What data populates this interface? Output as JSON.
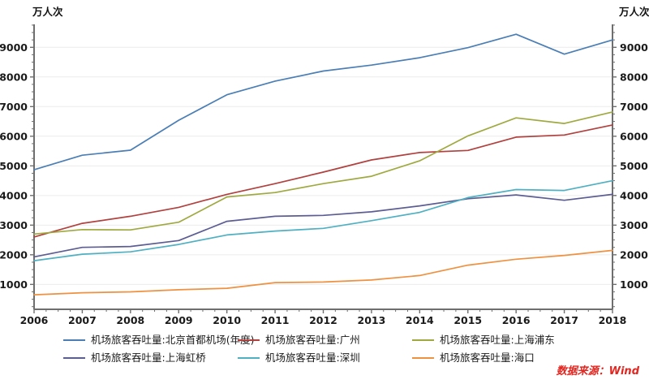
{
  "labels": {
    "unit_left": "万人次",
    "unit_right": "万人次",
    "source": "数据来源：Wind"
  },
  "chart_data": {
    "type": "line",
    "title": "",
    "xlabel": "",
    "ylabel": "万人次",
    "x": [
      "2006",
      "2007",
      "2008",
      "2009",
      "2010",
      "2011",
      "2012",
      "2013",
      "2014",
      "2015",
      "2016",
      "2017",
      "2018"
    ],
    "ylim": [
      160,
      9775
    ],
    "yticks": [
      1000,
      2000,
      3000,
      4000,
      5000,
      6000,
      7000,
      8000,
      9000
    ],
    "grid": true,
    "legend_position": "bottom",
    "series": [
      {
        "name": "机场旅客吞吐量:北京首都机场(年度)",
        "color": "#4a7eb5",
        "values": [
          4870,
          5360,
          5530,
          6540,
          7400,
          7860,
          8200,
          8400,
          8650,
          8990,
          9440,
          8770,
          9250
        ]
      },
      {
        "name": "机场旅客吞吐量:广州",
        "color": "#b0413e",
        "values": [
          2600,
          3060,
          3300,
          3600,
          4040,
          4400,
          4790,
          5200,
          5450,
          5520,
          5970,
          6040,
          6380
        ]
      },
      {
        "name": "机场旅客吞吐量:上海浦东",
        "color": "#9fa93f",
        "values": [
          2700,
          2850,
          2840,
          3100,
          3950,
          4100,
          4400,
          4650,
          5170,
          6010,
          6620,
          6430,
          6820
        ]
      },
      {
        "name": "机场旅客吞吐量:上海虹桥",
        "color": "#5c5d93",
        "values": [
          1930,
          2250,
          2280,
          2480,
          3130,
          3300,
          3330,
          3450,
          3650,
          3890,
          4020,
          3840,
          4040
        ]
      },
      {
        "name": "机场旅客吞吐量:深圳",
        "color": "#4fb0c2",
        "values": [
          1800,
          2020,
          2100,
          2350,
          2670,
          2800,
          2890,
          3150,
          3430,
          3930,
          4200,
          4170,
          4500
        ]
      },
      {
        "name": "机场旅客吞吐量:海口",
        "color": "#ee9140",
        "values": [
          650,
          720,
          750,
          820,
          870,
          1060,
          1080,
          1150,
          1300,
          1650,
          1850,
          1980,
          2150
        ]
      }
    ]
  }
}
